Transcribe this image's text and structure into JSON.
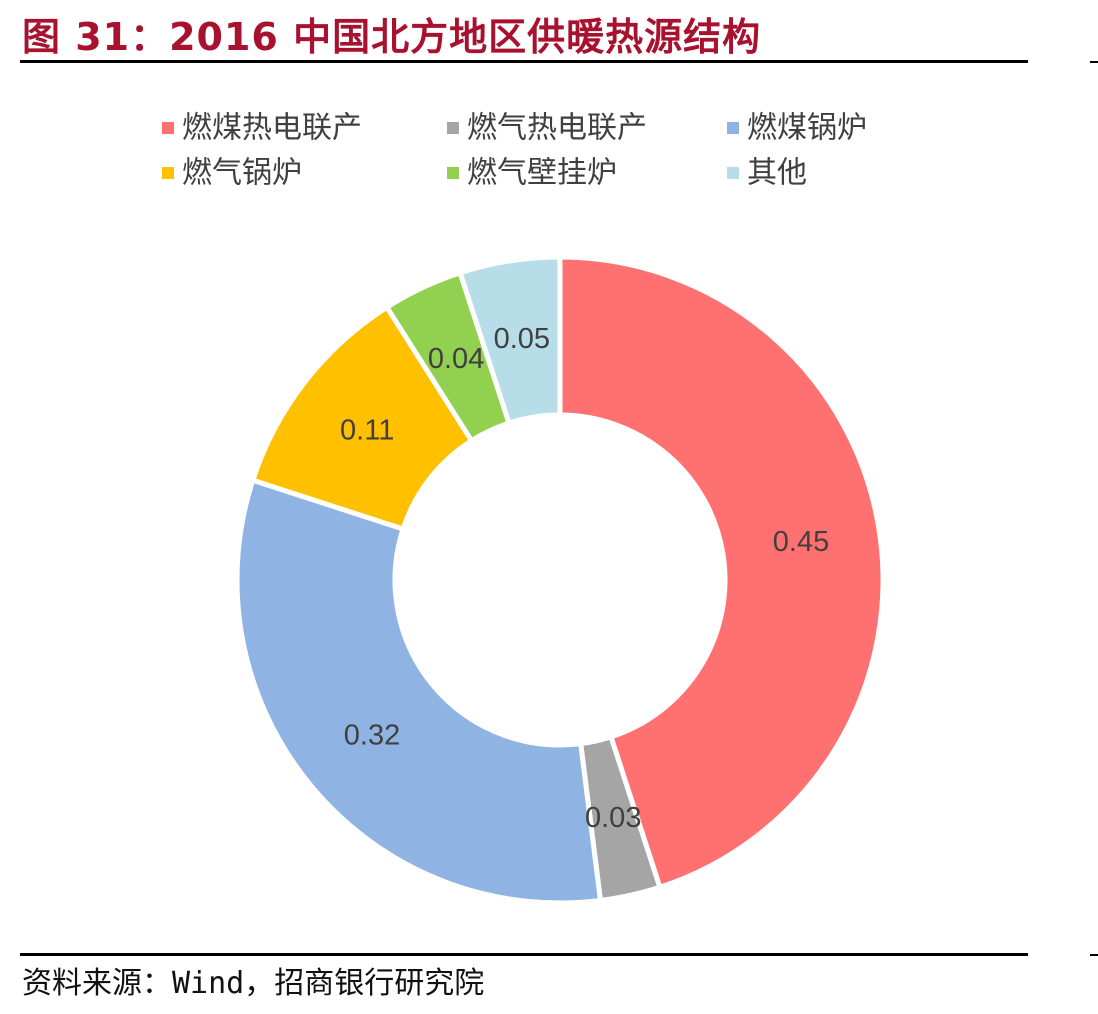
{
  "figure": {
    "title": "图 31：2016 中国北方地区供暖热源结构",
    "source": "资料来源：Wind，招商银行研究院"
  },
  "chart_data": {
    "type": "pie",
    "donut": true,
    "title": "图 31：2016 中国北方地区供暖热源结构",
    "categories": [
      "燃煤热电联产",
      "燃气热电联产",
      "燃煤锅炉",
      "燃气锅炉",
      "燃气壁挂炉",
      "其他"
    ],
    "values": [
      0.45,
      0.03,
      0.32,
      0.11,
      0.04,
      0.05
    ],
    "labels": [
      "0.45",
      "0.03",
      "0.32",
      "0.11",
      "0.04",
      "0.05"
    ],
    "colors": [
      "#ff7070",
      "#a5a5a5",
      "#8fb3e3",
      "#ffc000",
      "#92d050",
      "#b7dde8"
    ],
    "legend_position": "top"
  }
}
